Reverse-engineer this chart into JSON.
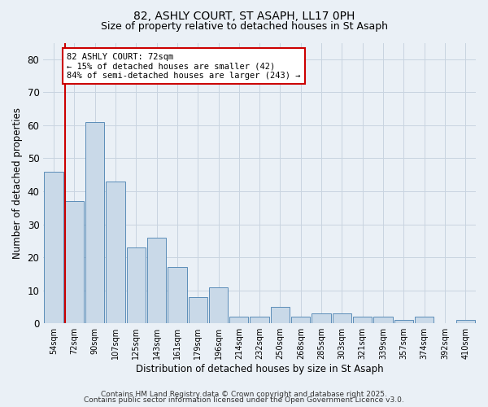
{
  "title_line1": "82, ASHLY COURT, ST ASAPH, LL17 0PH",
  "title_line2": "Size of property relative to detached houses in St Asaph",
  "xlabel": "Distribution of detached houses by size in St Asaph",
  "ylabel": "Number of detached properties",
  "bins": [
    "54sqm",
    "72sqm",
    "90sqm",
    "107sqm",
    "125sqm",
    "143sqm",
    "161sqm",
    "179sqm",
    "196sqm",
    "214sqm",
    "232sqm",
    "250sqm",
    "268sqm",
    "285sqm",
    "303sqm",
    "321sqm",
    "339sqm",
    "357sqm",
    "374sqm",
    "392sqm",
    "410sqm"
  ],
  "values": [
    46,
    37,
    61,
    43,
    23,
    26,
    17,
    8,
    11,
    2,
    2,
    5,
    2,
    3,
    3,
    2,
    2,
    1,
    2,
    0,
    1
  ],
  "bar_color": "#c9d9e8",
  "bar_edge_color": "#5b8db8",
  "red_line_index": 1,
  "red_line_color": "#cc0000",
  "annotation_text": "82 ASHLY COURT: 72sqm\n← 15% of detached houses are smaller (42)\n84% of semi-detached houses are larger (243) →",
  "annotation_box_color": "white",
  "annotation_box_edge_color": "#cc0000",
  "ylim": [
    0,
    85
  ],
  "yticks": [
    0,
    10,
    20,
    30,
    40,
    50,
    60,
    70,
    80
  ],
  "grid_color": "#c8d4e0",
  "bg_color": "#eaf0f6",
  "footer_line1": "Contains HM Land Registry data © Crown copyright and database right 2025.",
  "footer_line2": "Contains public sector information licensed under the Open Government Licence v3.0.",
  "title_fontsize": 10,
  "subtitle_fontsize": 9,
  "annotation_fontsize": 7.5,
  "footer_fontsize": 6.5
}
